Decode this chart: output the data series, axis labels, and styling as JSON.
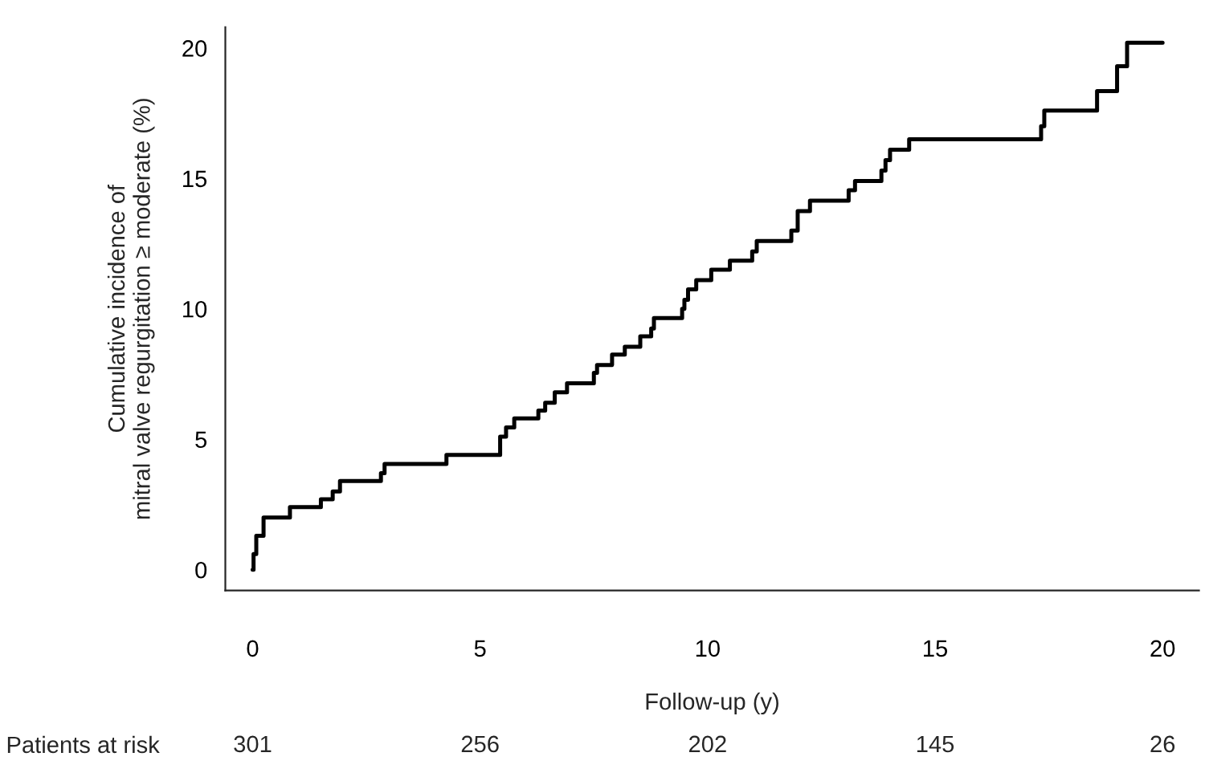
{
  "chart_data": {
    "type": "step",
    "xlabel": "Follow-up (y)",
    "ylabel": "Cumulative incidence of\nmitral valve regurgitation ≥ moderate (%)",
    "x": [
      0,
      0.02,
      0.08,
      0.24,
      0.82,
      1.5,
      1.76,
      1.92,
      2.82,
      2.9,
      4.26,
      5.44,
      5.57,
      5.75,
      6.28,
      6.43,
      6.64,
      6.91,
      7.5,
      7.57,
      7.9,
      8.18,
      8.52,
      8.76,
      8.82,
      9.44,
      9.49,
      9.57,
      9.75,
      10.08,
      10.49,
      10.98,
      11.08,
      11.84,
      11.98,
      12.25,
      13.1,
      13.24,
      13.82,
      13.91,
      14.01,
      14.43,
      17.33,
      17.4,
      18.56,
      19.0,
      19.22,
      20.0
    ],
    "series": [
      {
        "color": "#000000",
        "values": [
          0,
          0.6,
          1.3,
          2.0,
          2.4,
          2.7,
          3.0,
          3.4,
          3.7,
          4.05,
          4.4,
          5.1,
          5.45,
          5.8,
          6.1,
          6.4,
          6.8,
          7.15,
          7.55,
          7.85,
          8.25,
          8.55,
          8.95,
          9.25,
          9.65,
          10.0,
          10.35,
          10.75,
          11.1,
          11.5,
          11.85,
          12.2,
          12.6,
          13.0,
          13.75,
          14.15,
          14.55,
          14.9,
          15.3,
          15.7,
          16.1,
          16.5,
          17.0,
          17.6,
          18.35,
          19.3,
          20.2,
          20.2
        ]
      }
    ],
    "xlim": [
      -0.6,
      20.8
    ],
    "ylim": [
      -0.8,
      20.8
    ],
    "xticks": [
      0,
      5,
      10,
      15,
      20
    ],
    "yticks": [
      0,
      5,
      10,
      15,
      20
    ],
    "grid": false,
    "line_style": "solid",
    "marker": "none",
    "annotations": [
      "Patients at risk",
      "301",
      "256",
      "202",
      "145",
      "26"
    ]
  }
}
